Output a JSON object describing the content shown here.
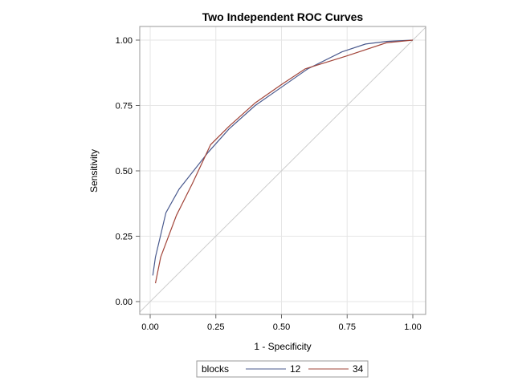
{
  "chart_data": {
    "type": "line",
    "title": "Two Independent ROC Curves",
    "xlabel": "1 - Specificity",
    "ylabel": "Sensitivity",
    "xlim": [
      -0.04,
      1.05
    ],
    "ylim": [
      -0.05,
      1.05
    ],
    "xticks": [
      0,
      0.25,
      0.5,
      0.75,
      1
    ],
    "xtick_labels": [
      "0.00",
      "0.25",
      "0.50",
      "0.75",
      "1.00"
    ],
    "yticks": [
      0,
      0.25,
      0.5,
      0.75,
      1
    ],
    "ytick_labels": [
      "0.00",
      "0.25",
      "0.50",
      "0.75",
      "1.00"
    ],
    "grid": true,
    "reference_line": {
      "x": [
        0,
        1
      ],
      "y": [
        0,
        1
      ],
      "color": "#cccccc"
    },
    "legend": {
      "title": "blocks",
      "placement": "bottom"
    },
    "series": [
      {
        "name": "12",
        "color": "#4a5a8e",
        "x": [
          0.01,
          0.02,
          0.06,
          0.11,
          0.22,
          0.3,
          0.4,
          0.5,
          0.6,
          0.73,
          0.82,
          0.9,
          1.0
        ],
        "y": [
          0.1,
          0.17,
          0.34,
          0.43,
          0.57,
          0.66,
          0.75,
          0.82,
          0.89,
          0.955,
          0.985,
          0.995,
          1.0
        ]
      },
      {
        "name": "34",
        "color": "#a2453a",
        "x": [
          0.02,
          0.04,
          0.1,
          0.16,
          0.23,
          0.3,
          0.4,
          0.5,
          0.59,
          0.75,
          0.9,
          1.0
        ],
        "y": [
          0.07,
          0.17,
          0.33,
          0.45,
          0.6,
          0.67,
          0.76,
          0.83,
          0.89,
          0.94,
          0.99,
          1.0
        ]
      }
    ]
  }
}
